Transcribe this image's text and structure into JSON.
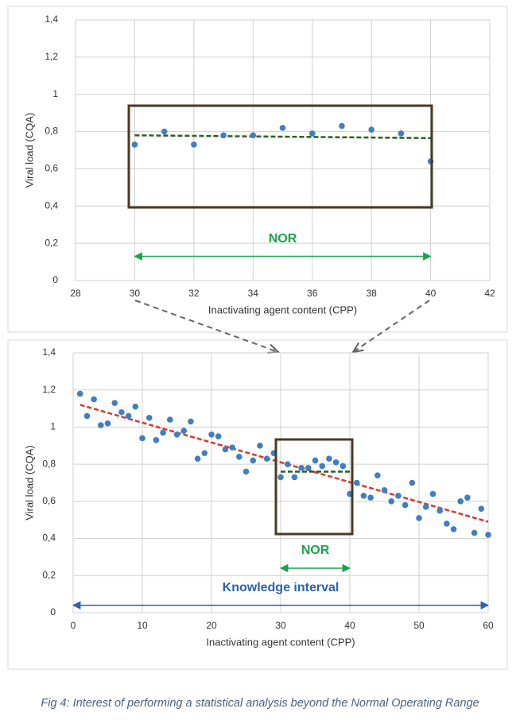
{
  "chart_data": [
    {
      "type": "scatter",
      "x_label": "Inactivating agent content (CPP)",
      "y_label": "Viral load (CQA)",
      "x": [
        30,
        31,
        32,
        33,
        34,
        35,
        36,
        37,
        38,
        39,
        40
      ],
      "values": [
        0.73,
        0.8,
        0.73,
        0.78,
        0.78,
        0.82,
        0.79,
        0.83,
        0.81,
        0.79,
        0.64
      ],
      "color": "#3f7fc1",
      "trendlines": [
        {
          "x": [
            30,
            40
          ],
          "values": [
            0.78,
            0.765
          ],
          "color": "#2e5e1e"
        }
      ],
      "annotations": [
        {
          "text": "NOR",
          "x": [
            30,
            40
          ],
          "y": 0.13,
          "color": "#1aa34a"
        }
      ],
      "xlim": [
        28,
        42
      ],
      "xticks": [
        28,
        30,
        32,
        34,
        36,
        38,
        40,
        42
      ],
      "ylim": [
        0,
        1.4
      ],
      "yticks": [
        0,
        {
          "value": 0.2,
          "label": "0,2"
        },
        {
          "value": 0.4,
          "label": "0,4"
        },
        {
          "value": 0.6,
          "label": "0,6"
        },
        {
          "value": 0.8,
          "label": "0,8"
        },
        1,
        {
          "value": 1.2,
          "label": "1,2"
        },
        {
          "value": 1.4,
          "label": "1,4"
        }
      ],
      "grid": true
    },
    {
      "type": "scatter",
      "x_label": "Inactivating agent content (CPP)",
      "y_label": "Viral load (CQA)",
      "x": [
        1,
        2,
        3,
        4,
        5,
        6,
        7,
        8,
        9,
        10,
        11,
        12,
        13,
        14,
        15,
        16,
        17,
        18,
        19,
        20,
        21,
        22,
        23,
        24,
        25,
        26,
        27,
        28,
        29,
        30,
        31,
        32,
        33,
        34,
        35,
        36,
        37,
        38,
        39,
        40,
        41,
        42,
        43,
        44,
        45,
        46,
        47,
        48,
        49,
        50,
        51,
        52,
        53,
        54,
        55,
        56,
        57,
        58,
        59,
        60
      ],
      "values": [
        1.18,
        1.06,
        1.15,
        1.01,
        1.02,
        1.13,
        1.08,
        1.06,
        1.11,
        0.94,
        1.05,
        0.93,
        0.97,
        1.04,
        0.96,
        0.98,
        1.03,
        0.83,
        0.86,
        0.96,
        0.95,
        0.88,
        0.89,
        0.84,
        0.76,
        0.82,
        0.9,
        0.83,
        0.86,
        0.73,
        0.8,
        0.73,
        0.78,
        0.78,
        0.82,
        0.79,
        0.83,
        0.81,
        0.79,
        0.64,
        0.7,
        0.63,
        0.62,
        0.74,
        0.66,
        0.6,
        0.63,
        0.58,
        0.7,
        0.51,
        0.57,
        0.64,
        0.55,
        0.48,
        0.45,
        0.6,
        0.62,
        0.43,
        0.56,
        0.42
      ],
      "color": "#3f7fc1",
      "trendlines": [
        {
          "x": [
            1,
            60
          ],
          "values": [
            1.12,
            0.49
          ],
          "color": "#e0352b"
        },
        {
          "x": [
            30,
            40
          ],
          "values": [
            0.76,
            0.76
          ],
          "color": "#2e5e1e"
        }
      ],
      "annotations": [
        {
          "text": "NOR",
          "x": [
            30,
            40
          ],
          "y": 0.24,
          "color": "#1aa34a"
        },
        {
          "text": "Knowledge interval",
          "x": [
            0,
            60
          ],
          "y": 0.04,
          "color": "#2a63ad"
        }
      ],
      "xlim": [
        0,
        60
      ],
      "xticks": [
        0,
        10,
        20,
        30,
        40,
        50,
        60
      ],
      "ylim": [
        0,
        1.4
      ],
      "yticks": [
        0,
        {
          "value": 0.2,
          "label": "0,2"
        },
        {
          "value": 0.4,
          "label": "0,4"
        },
        {
          "value": 0.6,
          "label": "0,6"
        },
        {
          "value": 0.8,
          "label": "0,8"
        },
        1,
        {
          "value": 1.2,
          "label": "1,2"
        },
        {
          "value": 1.4,
          "label": "1,4"
        }
      ],
      "grid": true
    }
  ],
  "caption": "Fig 4: Interest of performing a statistical analysis beyond the Normal Operating Range"
}
